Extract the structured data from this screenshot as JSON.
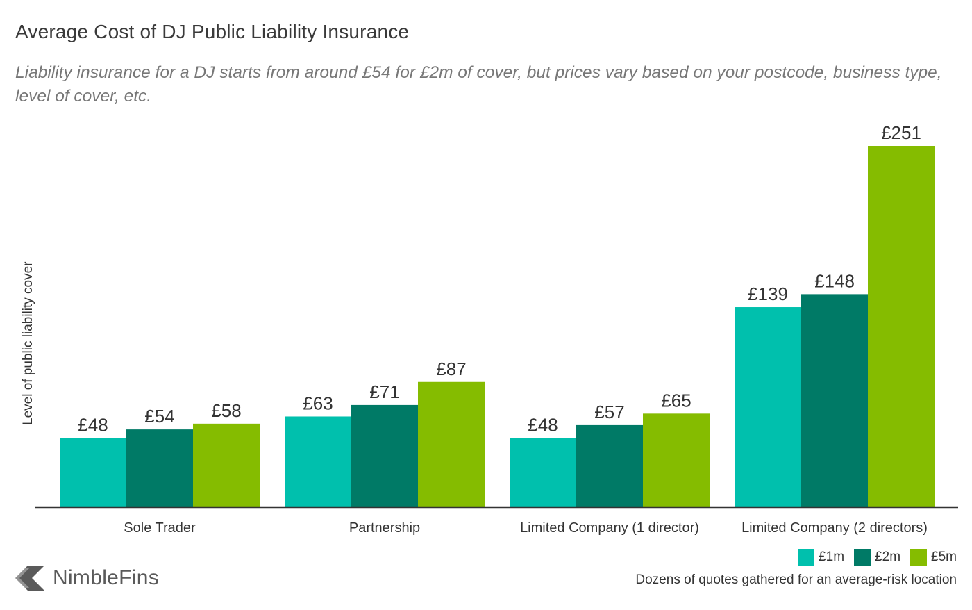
{
  "header": {
    "title": "Average Cost of DJ Public Liability Insurance",
    "subtitle": "Liability insurance for a DJ starts from around £54 for £2m of cover, but prices vary based on your postcode, business type, level of cover, etc."
  },
  "chart_data": {
    "type": "bar",
    "title": "Average Cost of DJ Public Liability Insurance",
    "xlabel": "",
    "ylabel": "Level of public liability cover",
    "categories": [
      "Sole Trader",
      "Partnership",
      "Limited Company (1 director)",
      "Limited Company (2 directors)"
    ],
    "series": [
      {
        "name": "£1m",
        "color": "#00c0ad",
        "values": [
          48,
          63,
          48,
          139
        ],
        "labels": [
          "£48",
          "£63",
          "£48",
          "£139"
        ]
      },
      {
        "name": "£2m",
        "color": "#007a66",
        "values": [
          54,
          71,
          57,
          148
        ],
        "labels": [
          "£54",
          "£71",
          "£57",
          "£148"
        ]
      },
      {
        "name": "£5m",
        "color": "#85bc00",
        "values": [
          58,
          87,
          65,
          251
        ],
        "labels": [
          "£58",
          "£87",
          "£65",
          "£251"
        ]
      }
    ],
    "ylim": [
      0,
      260
    ],
    "grid": false,
    "legend_position": "bottom-right"
  },
  "footer": {
    "note": "Dozens of quotes gathered for an average-risk location",
    "logo_text": "NimbleFins",
    "logo_color": "#5a5a5a"
  }
}
